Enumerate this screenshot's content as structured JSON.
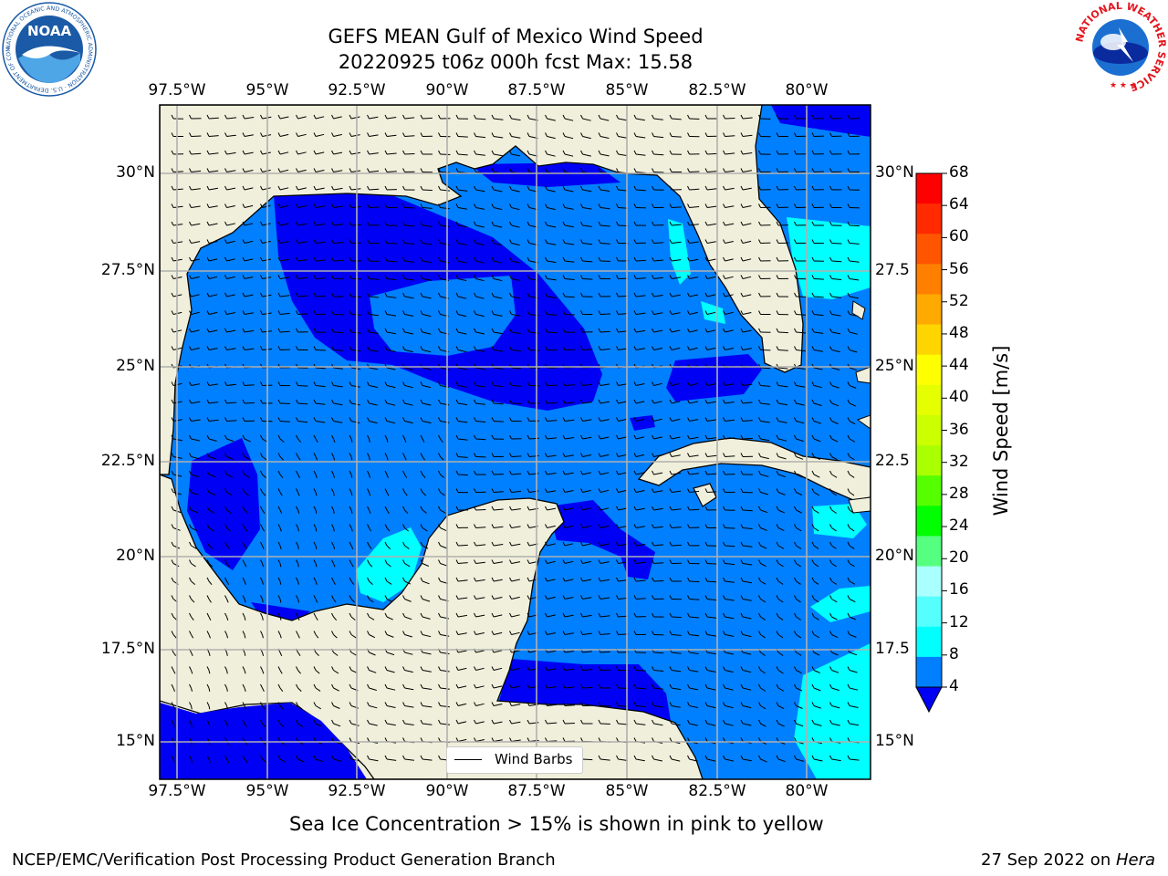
{
  "title": {
    "line1": "GEFS MEAN Gulf of Mexico Wind Speed",
    "line2": "20220925 t06z 000h fcst   Max: 15.58"
  },
  "logos": {
    "left": {
      "name": "NOAA",
      "ring_text": "NATIONAL OCEANIC AND ATMOSPHERIC ADMINISTRATION · U.S. DEPARTMENT OF COMMERCE",
      "color": "#1b5aa6"
    },
    "right": {
      "ring_text": "NATIONAL WEATHER SERVICE",
      "color": "#e3161d"
    }
  },
  "map": {
    "lon_ticks_top": [
      "97.5°W",
      "95°W",
      "92.5°W",
      "90°W",
      "87.5°W",
      "85°W",
      "82.5°W",
      "80°W"
    ],
    "lon_ticks_bottom": [
      "97.5°W",
      "95°W",
      "92.5°W",
      "90°W",
      "87.5°W",
      "85°W",
      "82.5°W",
      "80°W"
    ],
    "lat_ticks_left": [
      "30°N",
      "27.5°N",
      "25°N",
      "22.5°N",
      "20°N",
      "17.5°N",
      "15°N"
    ],
    "lat_ticks_right": [
      "30°N",
      "27.5",
      "25°N",
      "22.5",
      "20°N",
      "17.5",
      "15°N"
    ],
    "legend_label": "Wind Barbs",
    "land_color": "#efefdb",
    "water_colors": {
      "4-8": "#0080ff",
      "0-4": "#0000f5",
      "8-12": "#00ffff"
    }
  },
  "colorbar": {
    "label": "Wind Speed [m/s]",
    "ticks": [
      "68",
      "64",
      "60",
      "56",
      "52",
      "48",
      "44",
      "40",
      "36",
      "32",
      "28",
      "24",
      "20",
      "16",
      "12",
      "8",
      "4"
    ],
    "colors": [
      "#ff0000",
      "#ff2a00",
      "#ff5500",
      "#ff8000",
      "#ffaa00",
      "#ffd500",
      "#ffff00",
      "#e6ff00",
      "#ccff00",
      "#aaff00",
      "#55ff00",
      "#00ff00",
      "#55ff80",
      "#aaffff",
      "#55ffff",
      "#00ffff",
      "#0080ff"
    ],
    "extend_color": "#0000f5"
  },
  "subtitle": "Sea Ice Concentration > 15% is shown in pink to yellow",
  "footer": {
    "left": "NCEP/EMC/Verification Post Processing Product Generation Branch",
    "date": "27 Sep 2022 on ",
    "machine": "Hera"
  }
}
